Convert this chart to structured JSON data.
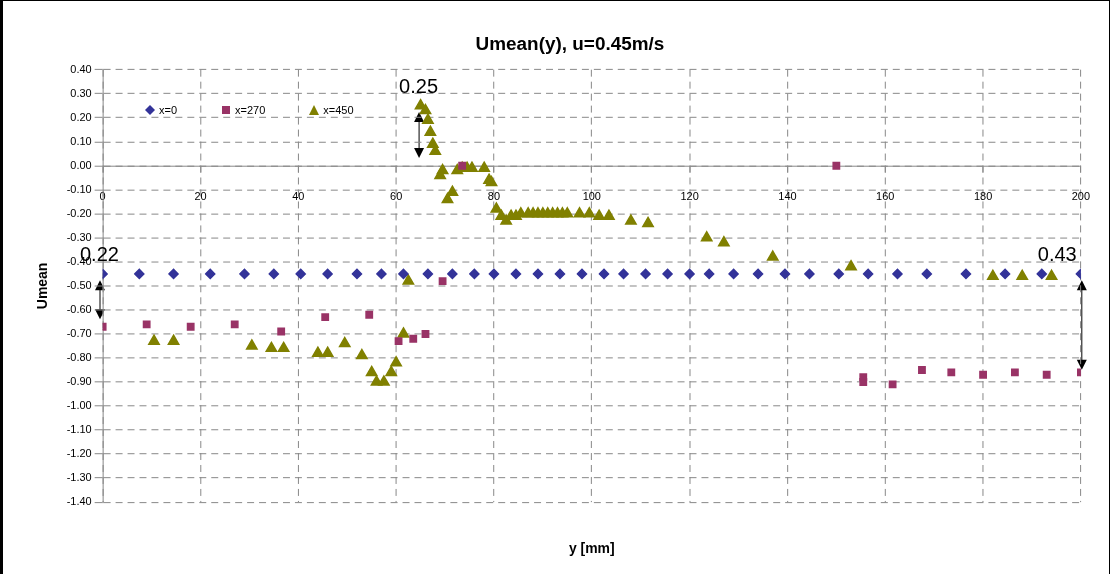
{
  "chart_data": {
    "type": "scatter",
    "title": "Umean(y), u=0.45m/s",
    "xlabel": "y [mm]",
    "ylabel": "Umean",
    "xlim": [
      0,
      200
    ],
    "xticks": [
      0,
      20,
      40,
      60,
      80,
      100,
      120,
      140,
      160,
      180,
      200
    ],
    "ylim": [
      -1.4,
      0.4
    ],
    "yticks": [
      {
        "value": 0.4,
        "label": "0.40"
      },
      {
        "value": 0.3,
        "label": "0.30"
      },
      {
        "value": 0.2,
        "label": "0.20"
      },
      {
        "value": 0.1,
        "label": "0.10"
      },
      {
        "value": 0,
        "label": "0.00"
      },
      {
        "value": -0.1,
        "label": "-0.10"
      },
      {
        "value": -0.2,
        "label": "-0.20"
      },
      {
        "value": -0.3,
        "label": "-0.30"
      },
      {
        "value": -0.4,
        "label": "-0.40"
      },
      {
        "value": -0.5,
        "label": "-0.50"
      },
      {
        "value": -0.6,
        "label": "-0.60"
      },
      {
        "value": -0.7,
        "label": "-0.70"
      },
      {
        "value": -0.8,
        "label": "-0.80"
      },
      {
        "value": -0.9,
        "label": "-0.90"
      },
      {
        "value": -1,
        "label": "-1.00"
      },
      {
        "value": -1.1,
        "label": "-1.10"
      },
      {
        "value": -1.2,
        "label": "-1.20"
      },
      {
        "value": -1.3,
        "label": "-1.30"
      },
      {
        "value": -1.4,
        "label": "-1.40"
      }
    ],
    "grid": true,
    "legend": "top left",
    "series": [
      {
        "name": "x=0",
        "color": "#333399",
        "marker": "diamond",
        "x": [
          0,
          7.5,
          14.5,
          22,
          29,
          35,
          40.5,
          46,
          52,
          57,
          61.5,
          66.5,
          71.5,
          76,
          80,
          84.5,
          89,
          93.5,
          98,
          102.5,
          106.5,
          111,
          115.5,
          120,
          124,
          129,
          134,
          139.5,
          144.5,
          150.5,
          156.5,
          162.5,
          168.5,
          176.5,
          184.5,
          192,
          200
        ],
        "values": [
          -0.45,
          -0.45,
          -0.45,
          -0.45,
          -0.45,
          -0.45,
          -0.45,
          -0.45,
          -0.45,
          -0.45,
          -0.45,
          -0.45,
          -0.45,
          -0.45,
          -0.45,
          -0.45,
          -0.45,
          -0.45,
          -0.45,
          -0.45,
          -0.45,
          -0.45,
          -0.45,
          -0.45,
          -0.45,
          -0.45,
          -0.45,
          -0.45,
          -0.45,
          -0.45,
          -0.45,
          -0.45,
          -0.45,
          -0.45,
          -0.45,
          -0.45,
          -0.45
        ]
      },
      {
        "name": "x=270",
        "color": "#993366",
        "marker": "square",
        "x": [
          0,
          9,
          18,
          27,
          36.5,
          45.5,
          54.5,
          60.5,
          63.5,
          66,
          69.5,
          73.5,
          150,
          155.5,
          155.5,
          161.5,
          167.5,
          173.5,
          180,
          186.5,
          193,
          200
        ],
        "values": [
          -0.67,
          -0.66,
          -0.67,
          -0.66,
          -0.69,
          -0.63,
          -0.62,
          -0.73,
          -0.72,
          -0.7,
          -0.48,
          0,
          0,
          -0.88,
          -0.9,
          -0.91,
          -0.85,
          -0.86,
          -0.87,
          -0.86,
          -0.87,
          -0.86
        ]
      },
      {
        "name": "x=450",
        "color": "#808000",
        "marker": "triangle",
        "x": [
          10.5,
          14.5,
          30.5,
          34.5,
          37,
          44,
          46,
          49.5,
          53,
          55,
          56,
          57.5,
          59,
          60,
          61.5,
          62.5,
          65,
          66,
          66.5,
          67,
          67.5,
          68,
          69,
          69.5,
          70.5,
          71.5,
          72.5,
          73.5,
          74.5,
          75.5,
          78,
          79,
          79.5,
          80.5,
          81.5,
          82.5,
          83.5,
          84.5,
          85.5,
          87,
          88,
          89,
          90,
          91,
          92,
          93,
          94,
          95,
          97.5,
          99.5,
          101.5,
          103.5,
          108,
          111.5,
          123.5,
          127,
          137,
          153,
          182,
          188,
          194
        ],
        "values": [
          -0.73,
          -0.73,
          -0.75,
          -0.76,
          -0.76,
          -0.78,
          -0.78,
          -0.74,
          -0.79,
          -0.86,
          -0.9,
          -0.9,
          -0.86,
          -0.82,
          -0.7,
          -0.48,
          0.25,
          0.23,
          0.19,
          0.14,
          0.09,
          0.06,
          -0.04,
          -0.02,
          -0.14,
          -0.11,
          -0.02,
          -0.01,
          -0.01,
          -0.01,
          -0.01,
          -0.06,
          -0.07,
          -0.18,
          -0.21,
          -0.23,
          -0.21,
          -0.21,
          -0.2,
          -0.2,
          -0.2,
          -0.2,
          -0.2,
          -0.2,
          -0.2,
          -0.2,
          -0.2,
          -0.2,
          -0.2,
          -0.2,
          -0.21,
          -0.21,
          -0.23,
          -0.24,
          -0.3,
          -0.32,
          -0.38,
          -0.42,
          -0.46,
          -0.46,
          -0.46
        ]
      }
    ],
    "annotations": [
      {
        "text": "0.25",
        "x": 65,
        "y": 0.25
      },
      {
        "text": "0.22",
        "x": 0,
        "y": -0.45
      },
      {
        "text": "0.43",
        "x": 200,
        "y": -0.45
      }
    ]
  }
}
